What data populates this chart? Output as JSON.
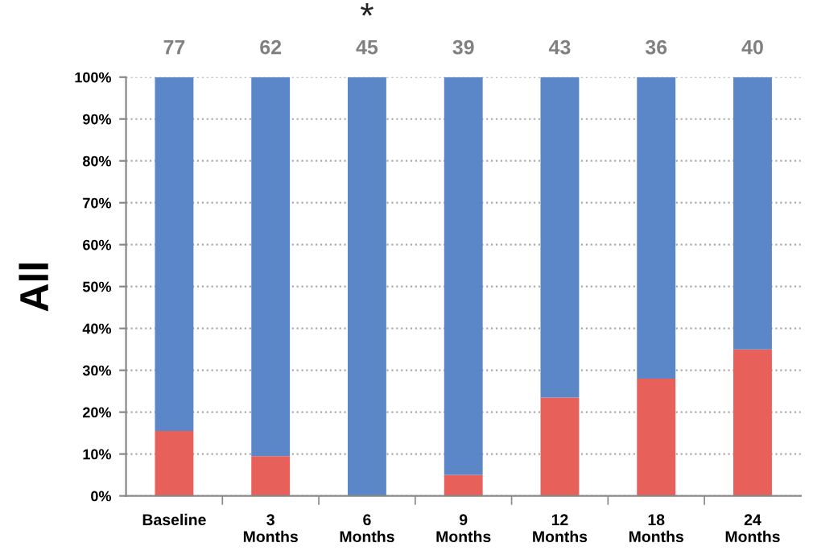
{
  "chart_data": {
    "type": "bar",
    "stacked": true,
    "ylabel": "All",
    "categories": [
      "Baseline",
      "3\nMonths",
      "6\nMonths",
      "9\nMonths",
      "12\nMonths",
      "18\nMonths",
      "24\nMonths"
    ],
    "series": [
      {
        "color": "#e8605a",
        "values": [
          15.5,
          9.5,
          0,
          5,
          23.5,
          28,
          35
        ]
      },
      {
        "color": "#5b87c9",
        "values": [
          84.5,
          90.5,
          100,
          95,
          76.5,
          72,
          65
        ]
      }
    ],
    "ylim": [
      0,
      100
    ],
    "yticks": [
      {
        "value": 0,
        "label": "0%"
      },
      {
        "value": 10,
        "label": "10%"
      },
      {
        "value": 20,
        "label": "20%"
      },
      {
        "value": 30,
        "label": "30%"
      },
      {
        "value": 40,
        "label": "40%"
      },
      {
        "value": 50,
        "label": "50%"
      },
      {
        "value": 60,
        "label": "60%"
      },
      {
        "value": 70,
        "label": "70%"
      },
      {
        "value": 80,
        "label": "80%"
      },
      {
        "value": 90,
        "label": "90%"
      },
      {
        "value": 100,
        "label": "100%"
      }
    ],
    "grid": "y",
    "annotations": [
      "77",
      "62",
      "45",
      "39",
      "43",
      "36",
      "40",
      "*"
    ]
  }
}
